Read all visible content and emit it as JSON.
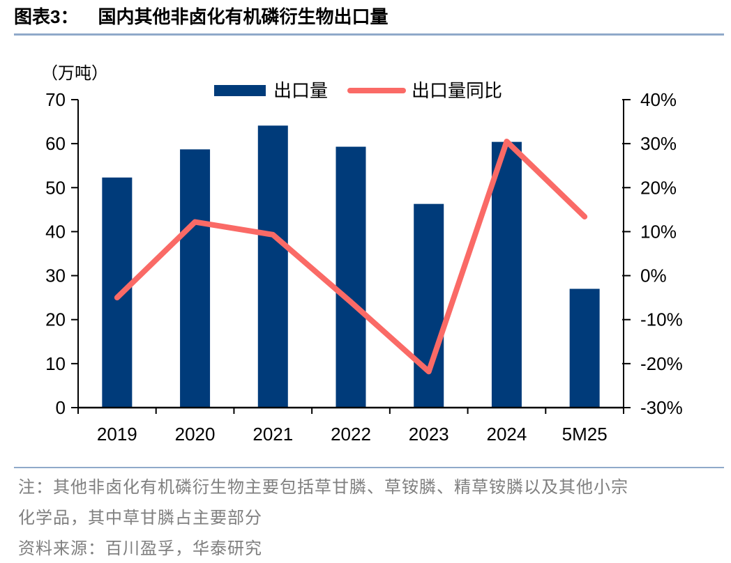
{
  "figure": {
    "label": "图表3：",
    "title": "国内其他非卤化有机磷衍生物出口量"
  },
  "legend": [
    {
      "label": "出口量",
      "marker": "bar-swatch",
      "color": "#003B7A"
    },
    {
      "label": "出口量同比",
      "marker": "line-swatch",
      "color": "#FA6A66"
    }
  ],
  "chart_data": {
    "type": "bar+line",
    "title": "国内其他非卤化有机磷衍生物出口量",
    "categories": [
      "2019",
      "2020",
      "2021",
      "2022",
      "2023",
      "2024",
      "5M25"
    ],
    "series": [
      {
        "name": "出口量",
        "type": "bar",
        "axis": "left",
        "unit": "万吨",
        "color": "#003B7A",
        "values": [
          52.3,
          58.7,
          64.1,
          59.3,
          46.3,
          60.4,
          27.0
        ]
      },
      {
        "name": "出口量同比",
        "type": "line",
        "axis": "right",
        "unit": "%",
        "color": "#FA6A66",
        "values": [
          -5.0,
          12.2,
          9.3,
          -6.0,
          -21.8,
          30.5,
          13.4
        ]
      }
    ],
    "left_axis": {
      "label": "（万吨）",
      "min": 0,
      "max": 70,
      "step": 10,
      "ticks": [
        "0",
        "10",
        "20",
        "30",
        "40",
        "50",
        "60",
        "70"
      ]
    },
    "right_axis": {
      "min": -30,
      "max": 40,
      "step": 10,
      "ticks": [
        "-30%",
        "-20%",
        "-10%",
        "0%",
        "10%",
        "20%",
        "30%",
        "40%"
      ]
    },
    "grid": false,
    "legend_position": "top-center"
  },
  "notes": {
    "line1": "注：其他非卤化有机磷衍生物主要包括草甘膦、草铵膦、精草铵膦以及其他小宗",
    "line2": "化学品，其中草甘膦占主要部分",
    "source": "资料来源：百川盈孚，华泰研究"
  },
  "colors": {
    "bar": "#003B7A",
    "line": "#FA6A66",
    "axis": "#000000",
    "divider": "#8FA9C9",
    "note_text": "#7F7F7F"
  }
}
